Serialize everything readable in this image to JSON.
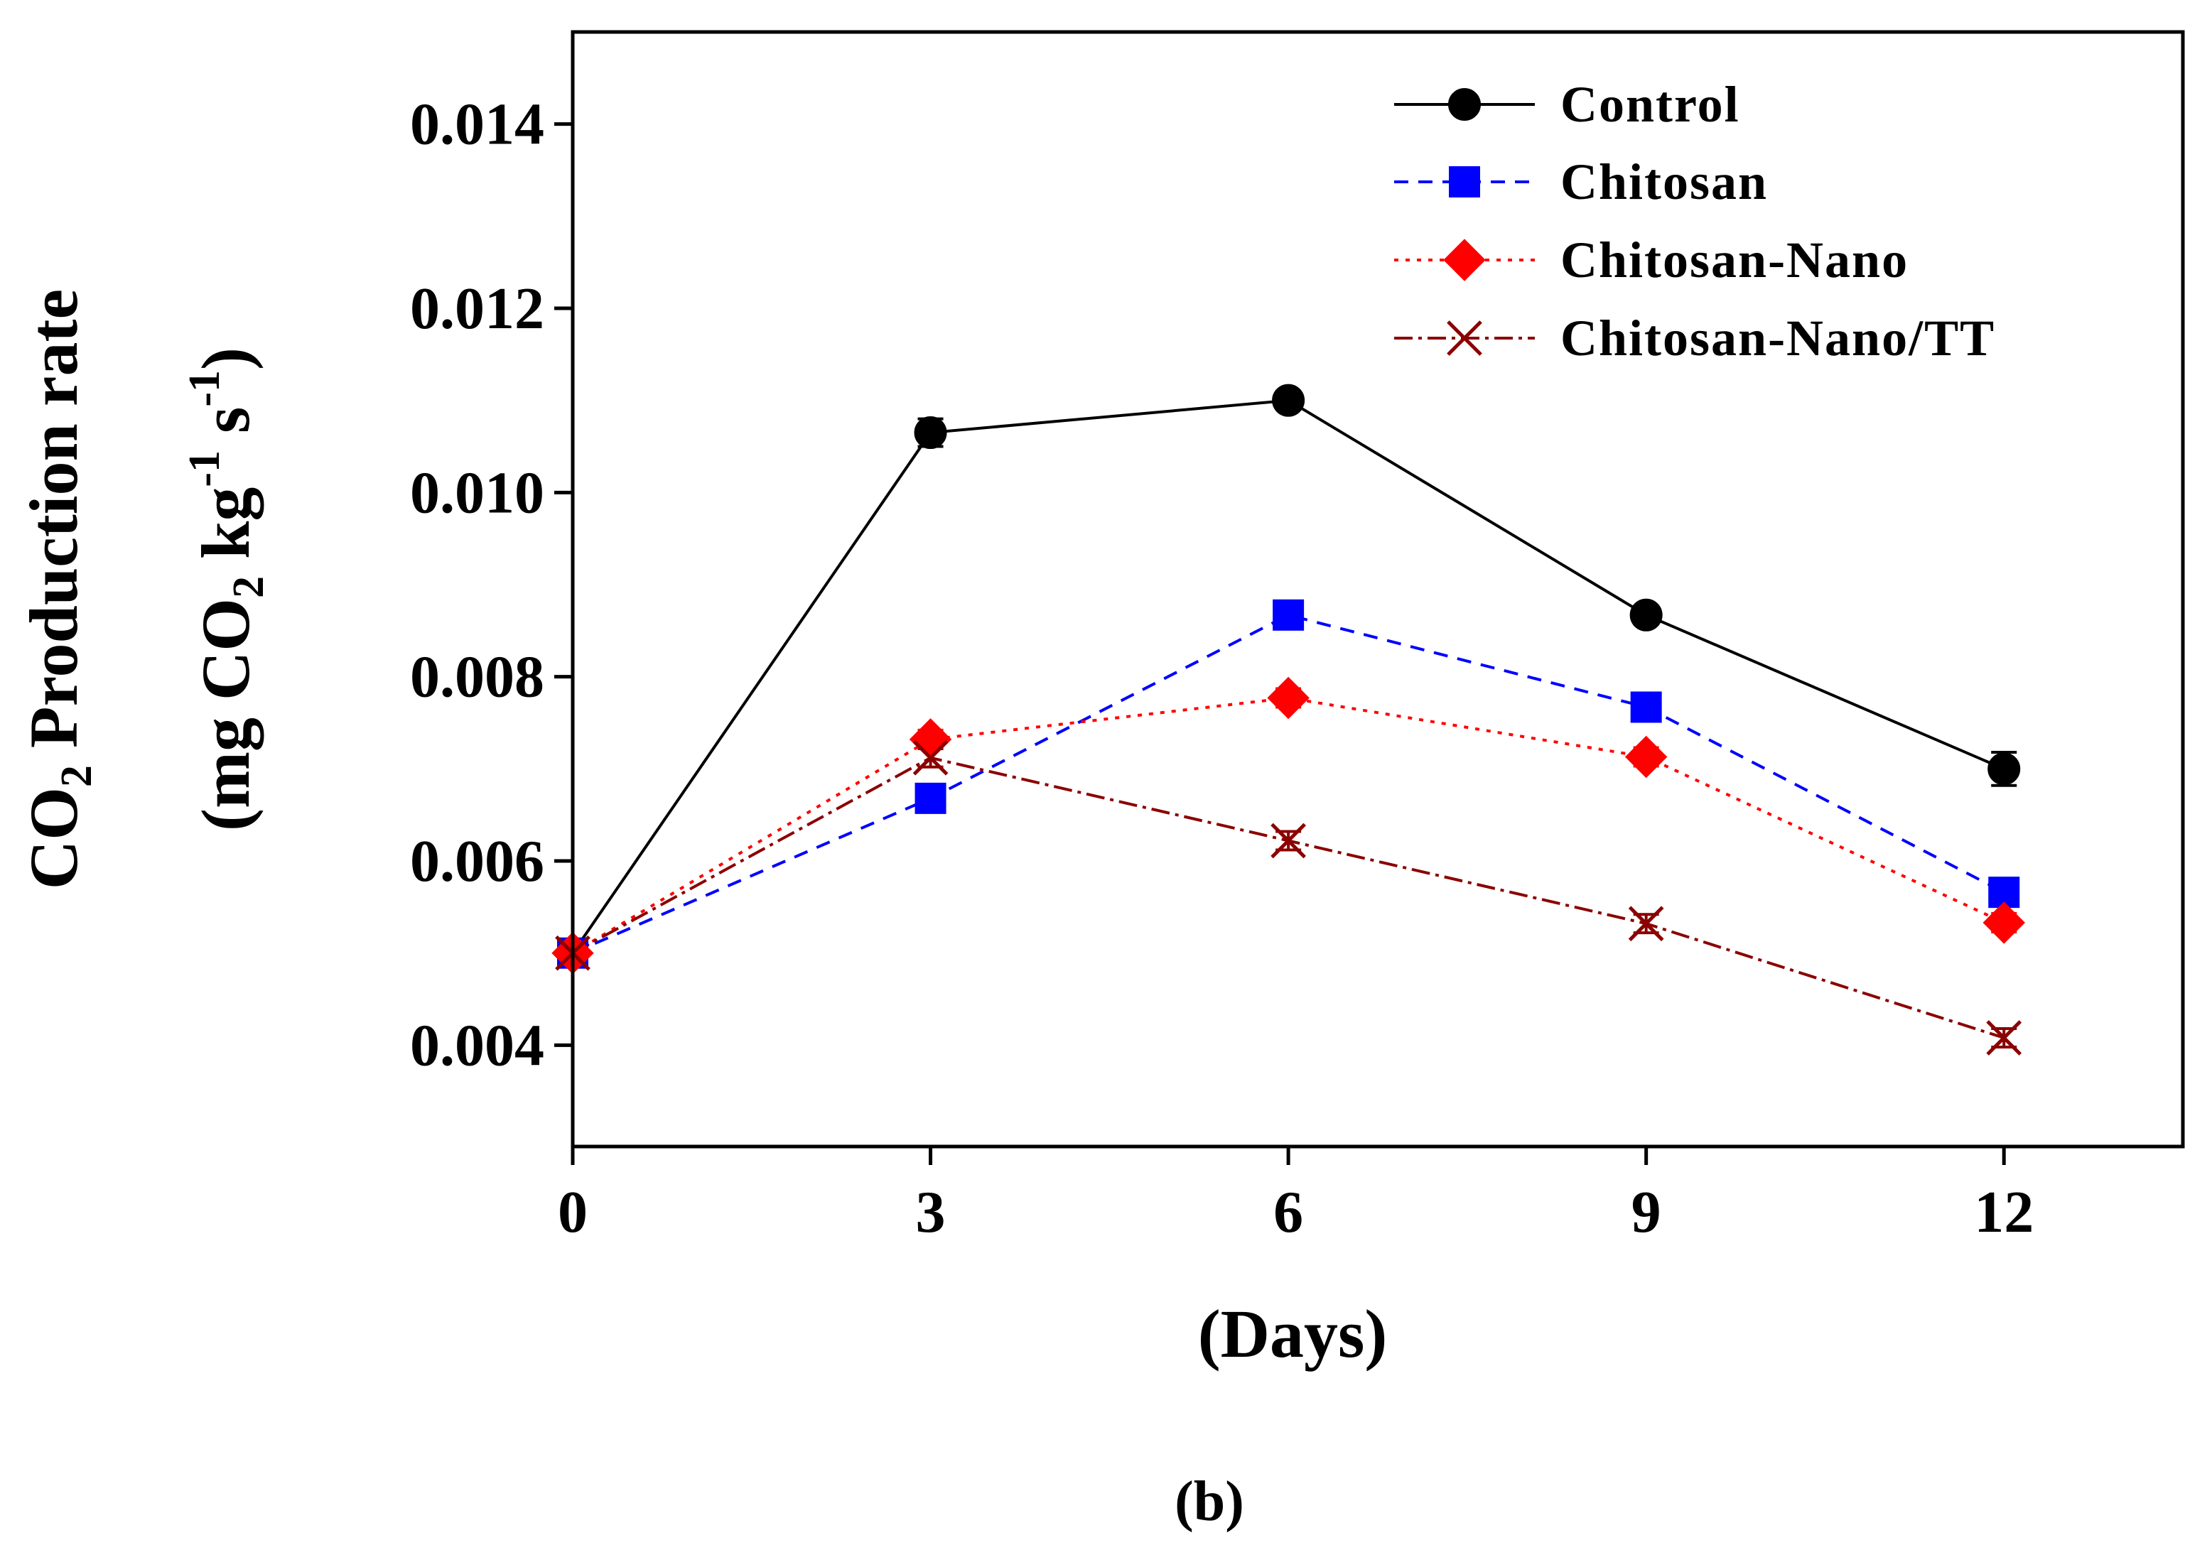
{
  "chart_data": {
    "type": "line",
    "x": [
      0,
      3,
      6,
      9,
      12
    ],
    "xlabel": "(Days)",
    "ylabel_line1_pre": "CO",
    "ylabel_line1_sub": "2",
    "ylabel_line1_post": " Production rate",
    "ylabel_line2_pre": "(mg CO",
    "ylabel_line2_sub": "2",
    "ylabel_line2_mid": " kg",
    "ylabel_line2_sup1": "-1",
    "ylabel_line2_s": " s",
    "ylabel_line2_sup2": "-1",
    "ylabel_line2_post": ")",
    "xlim": [
      0,
      13.5
    ],
    "ylim": [
      0.0029,
      0.015
    ],
    "xticks": [
      0,
      3,
      6,
      9,
      12
    ],
    "xtick_labels": [
      "0",
      "3",
      "6",
      "9",
      "12"
    ],
    "yticks": [
      0.004,
      0.006,
      0.008,
      0.01,
      0.012,
      0.014
    ],
    "ytick_labels": [
      "0.004",
      "0.006",
      "0.008",
      "0.010",
      "0.012",
      "0.014"
    ],
    "legend_position": "top-right",
    "grid": false,
    "series": [
      {
        "name": "Control",
        "values": [
          0.005,
          0.01065,
          0.011,
          0.00867,
          0.007
        ],
        "errors": [
          0.0001,
          0.00015,
          0.0001,
          0.0001,
          0.00018
        ],
        "color": "#000000",
        "dash": "",
        "marker": "circle"
      },
      {
        "name": "Chitosan",
        "values": [
          0.005,
          0.00668,
          0.00867,
          0.00767,
          0.00566
        ],
        "errors": [
          0.0001,
          0.0001,
          0.00012,
          0.0001,
          0.0001
        ],
        "color": "#0000ff",
        "dash": "20,14",
        "marker": "square"
      },
      {
        "name": "Chitosan-Nano",
        "values": [
          0.005,
          0.00732,
          0.00777,
          0.00713,
          0.00533
        ],
        "errors": [
          0.0001,
          0.0001,
          0.0001,
          0.0001,
          0.0001
        ],
        "color": "#ff0000",
        "dash": "6,10",
        "marker": "diamond"
      },
      {
        "name": "Chitosan-Nano/TT",
        "values": [
          0.005,
          0.00712,
          0.00622,
          0.00532,
          0.00408
        ],
        "errors": [
          0.0001,
          0.0001,
          0.0001,
          0.0001,
          0.0001
        ],
        "color": "#8b0000",
        "dash": "26,8,5,8",
        "marker": "x"
      }
    ]
  },
  "panel_label": "(b)"
}
